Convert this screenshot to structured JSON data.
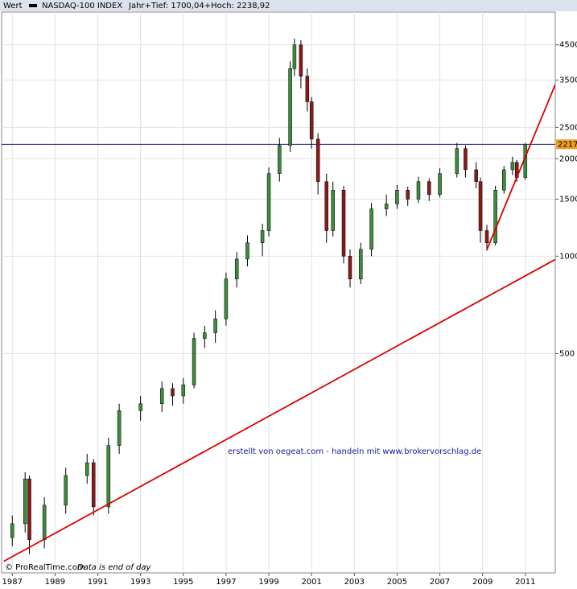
{
  "chart_data": {
    "type": "candlestick",
    "header": {
      "label": "Wert",
      "name": "NASDAQ-100 INDEX",
      "range": "Jahr+Tief: 1700,04+Hoch: 2238,92"
    },
    "annotation": "erstellt von oegeat.com - handeln mit www.brokervorschlag.de",
    "footer": {
      "source": "© ProRealTime.com",
      "note": "Data is end of day"
    },
    "log_y": true,
    "grid": true,
    "up_color": "#3c8c3c",
    "down_color": "#8b1a1a",
    "x": [
      1987.0,
      1987.6,
      1987.8,
      1988.5,
      1989.5,
      1990.5,
      1990.8,
      1991.5,
      1992.0,
      1993.0,
      1994.0,
      1994.5,
      1995.0,
      1995.5,
      1996.0,
      1996.5,
      1997.0,
      1997.5,
      1998.0,
      1998.7,
      1999.0,
      1999.5,
      2000.0,
      2000.2,
      2000.5,
      2000.8,
      2001.0,
      2001.3,
      2001.7,
      2002.0,
      2002.5,
      2002.8,
      2003.3,
      2003.8,
      2004.5,
      2005.0,
      2005.5,
      2006.0,
      2006.5,
      2007.0,
      2007.8,
      2008.2,
      2008.7,
      2008.9,
      2009.2,
      2009.6,
      2010.0,
      2010.4,
      2010.6,
      2011.0
    ],
    "open": [
      135,
      149,
      205,
      133,
      170,
      210,
      230,
      168,
      260,
      333,
      350,
      390,
      370,
      400,
      557,
      580,
      640,
      850,
      980,
      1100,
      1200,
      1800,
      2200,
      3800,
      4500,
      3600,
      3000,
      2300,
      1700,
      1200,
      1600,
      1000,
      850,
      1050,
      1400,
      1450,
      1600,
      1500,
      1700,
      1550,
      1800,
      2150,
      1850,
      1700,
      1200,
      1100,
      1600,
      1850,
      1950,
      1750
    ],
    "high": [
      158,
      215,
      210,
      180,
      222,
      245,
      236,
      275,
      350,
      370,
      410,
      405,
      420,
      580,
      610,
      680,
      890,
      1030,
      1160,
      1260,
      1880,
      2320,
      4000,
      4700,
      4650,
      3800,
      3100,
      2400,
      1800,
      1700,
      1650,
      1050,
      1100,
      1460,
      1550,
      1660,
      1640,
      1760,
      1740,
      1870,
      2240,
      2200,
      1950,
      1750,
      1250,
      1650,
      1900,
      2030,
      1980,
      2239
    ],
    "low": [
      127,
      140,
      120,
      125,
      160,
      198,
      158,
      160,
      245,
      310,
      330,
      345,
      350,
      390,
      520,
      540,
      610,
      800,
      930,
      1000,
      1150,
      1700,
      2100,
      3600,
      3300,
      2800,
      2150,
      1550,
      1100,
      1150,
      950,
      800,
      820,
      1000,
      1330,
      1400,
      1430,
      1460,
      1480,
      1520,
      1750,
      1750,
      1620,
      1100,
      1040,
      1080,
      1560,
      1780,
      1700,
      1720
    ],
    "close": [
      149,
      205,
      133,
      170,
      210,
      230,
      168,
      260,
      333,
      350,
      390,
      370,
      400,
      557,
      580,
      640,
      850,
      980,
      1100,
      1200,
      1800,
      2200,
      3800,
      4500,
      3600,
      3000,
      2300,
      1700,
      1200,
      1600,
      1000,
      850,
      1050,
      1400,
      1450,
      1600,
      1500,
      1700,
      1550,
      1800,
      2150,
      1850,
      1700,
      1200,
      1100,
      1600,
      1850,
      1950,
      1750,
      2217
    ],
    "hline": {
      "value": 2217,
      "color": "#1a1a8c"
    },
    "trendlines": [
      {
        "color": "#dd0000",
        "x": [
          1986.6,
          2012.4
        ],
        "y": [
          114,
          977
        ]
      },
      {
        "color": "#dd0000",
        "x": [
          2009.2,
          2012.4
        ],
        "y": [
          1047,
          3390
        ]
      }
    ],
    "xlim": [
      1986.5,
      2012.4
    ],
    "ylim": [
      105,
      5680
    ],
    "xticks": [
      1987,
      1989,
      1991,
      1993,
      1995,
      1997,
      1999,
      2001,
      2003,
      2005,
      2007,
      2009,
      2011
    ],
    "yticks": [
      4500,
      3500,
      2500,
      2000,
      1500,
      1000,
      500
    ]
  }
}
